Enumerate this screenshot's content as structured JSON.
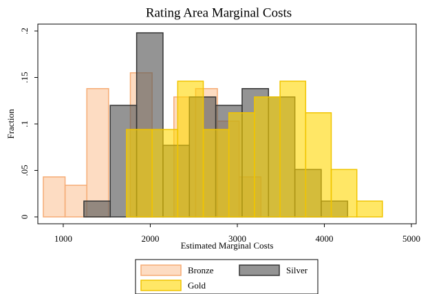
{
  "chart_data": {
    "type": "histogram",
    "title": "Rating Area Marginal Costs",
    "x_label": "Estimated Marginal Costs",
    "y_label": "Fraction",
    "xlim": [
      708,
      5055
    ],
    "ylim": [
      -0.0074,
      0.2074
    ],
    "xticks": [
      1000,
      2000,
      3000,
      4000,
      5000
    ],
    "yticks": [
      {
        "value": 0,
        "label": "0"
      },
      {
        "value": 0.05,
        "label": ".05"
      },
      {
        "value": 0.1,
        "label": ".1"
      },
      {
        "value": 0.15,
        "label": ".15"
      },
      {
        "value": 0.2,
        "label": ".2"
      }
    ],
    "grid": false,
    "series": [
      {
        "name": "Bronze",
        "color": "#fcc49a",
        "stroke": "#f5ab74",
        "bins": [
          771,
          1021,
          1271,
          1521,
          1771,
          2021,
          2271,
          2521,
          2771,
          3021,
          3271
        ],
        "values": [
          0.043,
          0.034,
          0.138,
          0,
          0.155,
          0,
          0.129,
          0.138,
          0.103,
          0.043
        ]
      },
      {
        "name": "Silver",
        "color": "#5a5a5a",
        "stroke": "#333333",
        "bins": [
          1237,
          1540,
          1843,
          2146,
          2449,
          2752,
          3055,
          3358,
          3661,
          3964,
          4267
        ],
        "values": [
          0.017,
          0.12,
          0.198,
          0.077,
          0.129,
          0.12,
          0.138,
          0.129,
          0.051,
          0.017
        ]
      },
      {
        "name": "Gold",
        "color": "#ffd700",
        "stroke": "#f0c400",
        "bins": [
          1727,
          2021,
          2315,
          2609,
          2903,
          3197,
          3491,
          3785,
          4079,
          4373,
          4667
        ],
        "values": [
          0.094,
          0.094,
          0.146,
          0.094,
          0.112,
          0.129,
          0.146,
          0.112,
          0.051,
          0.017
        ]
      }
    ]
  }
}
